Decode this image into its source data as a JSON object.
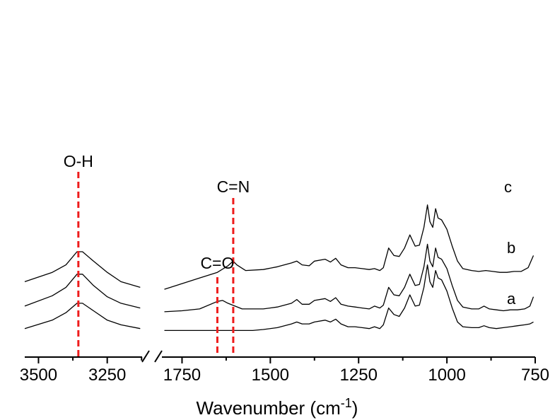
{
  "chart_data": {
    "type": "line",
    "xlabel_main": "Wavenumber (cm",
    "xlabel_sup": "-1",
    "xlabel_end": ")",
    "axis_break": true,
    "x_segments": [
      {
        "xlim": [
          3550,
          3100
        ],
        "ticks": [
          3500,
          3250
        ],
        "tick_labels": [
          "3500",
          "3250"
        ]
      },
      {
        "xlim": [
          1825,
          750
        ],
        "ticks": [
          1750,
          1500,
          1250,
          1000,
          750
        ],
        "tick_labels": [
          "1750",
          "1500",
          "1250",
          "1000",
          "750"
        ]
      }
    ],
    "series": [
      {
        "name": "c",
        "left": [
          [
            3550,
            0.77
          ],
          [
            3450,
            0.82
          ],
          [
            3400,
            0.86
          ],
          [
            3360,
            0.93
          ],
          [
            3340,
            0.93
          ],
          [
            3300,
            0.88
          ],
          [
            3250,
            0.82
          ],
          [
            3200,
            0.77
          ],
          [
            3130,
            0.74
          ]
        ],
        "right": [
          [
            1800,
            0.73
          ],
          [
            1750,
            0.76
          ],
          [
            1700,
            0.79
          ],
          [
            1650,
            0.82
          ],
          [
            1620,
            0.855
          ],
          [
            1605,
            0.88
          ],
          [
            1595,
            0.86
          ],
          [
            1570,
            0.83
          ],
          [
            1520,
            0.835
          ],
          [
            1480,
            0.85
          ],
          [
            1440,
            0.87
          ],
          [
            1425,
            0.88
          ],
          [
            1410,
            0.86
          ],
          [
            1390,
            0.855
          ],
          [
            1375,
            0.88
          ],
          [
            1345,
            0.89
          ],
          [
            1330,
            0.875
          ],
          [
            1315,
            0.895
          ],
          [
            1300,
            0.86
          ],
          [
            1280,
            0.845
          ],
          [
            1260,
            0.845
          ],
          [
            1240,
            0.84
          ],
          [
            1220,
            0.835
          ],
          [
            1205,
            0.84
          ],
          [
            1190,
            0.83
          ],
          [
            1180,
            0.845
          ],
          [
            1165,
            0.95
          ],
          [
            1150,
            0.91
          ],
          [
            1135,
            0.905
          ],
          [
            1120,
            0.95
          ],
          [
            1105,
            1.02
          ],
          [
            1090,
            0.96
          ],
          [
            1078,
            0.965
          ],
          [
            1065,
            1.06
          ],
          [
            1055,
            1.18
          ],
          [
            1048,
            1.09
          ],
          [
            1040,
            1.06
          ],
          [
            1032,
            1.16
          ],
          [
            1025,
            1.11
          ],
          [
            1015,
            1.1
          ],
          [
            1000,
            1.05
          ],
          [
            985,
            0.96
          ],
          [
            970,
            0.88
          ],
          [
            955,
            0.84
          ],
          [
            930,
            0.83
          ],
          [
            910,
            0.825
          ],
          [
            890,
            0.83
          ],
          [
            870,
            0.825
          ],
          [
            850,
            0.82
          ],
          [
            830,
            0.82
          ],
          [
            810,
            0.825
          ],
          [
            790,
            0.825
          ],
          [
            770,
            0.845
          ],
          [
            755,
            0.91
          ]
        ]
      },
      {
        "name": "b",
        "left": [
          [
            3550,
            0.64
          ],
          [
            3450,
            0.695
          ],
          [
            3400,
            0.74
          ],
          [
            3360,
            0.81
          ],
          [
            3340,
            0.81
          ],
          [
            3300,
            0.75
          ],
          [
            3250,
            0.69
          ],
          [
            3200,
            0.655
          ],
          [
            3130,
            0.63
          ]
        ],
        "right": [
          [
            1800,
            0.61
          ],
          [
            1750,
            0.615
          ],
          [
            1700,
            0.625
          ],
          [
            1650,
            0.665
          ],
          [
            1635,
            0.67
          ],
          [
            1620,
            0.655
          ],
          [
            1580,
            0.625
          ],
          [
            1520,
            0.625
          ],
          [
            1480,
            0.635
          ],
          [
            1440,
            0.655
          ],
          [
            1425,
            0.675
          ],
          [
            1410,
            0.65
          ],
          [
            1390,
            0.65
          ],
          [
            1375,
            0.67
          ],
          [
            1345,
            0.68
          ],
          [
            1330,
            0.665
          ],
          [
            1315,
            0.685
          ],
          [
            1300,
            0.65
          ],
          [
            1280,
            0.64
          ],
          [
            1260,
            0.635
          ],
          [
            1240,
            0.63
          ],
          [
            1220,
            0.625
          ],
          [
            1205,
            0.64
          ],
          [
            1190,
            0.63
          ],
          [
            1180,
            0.645
          ],
          [
            1165,
            0.74
          ],
          [
            1150,
            0.7
          ],
          [
            1135,
            0.695
          ],
          [
            1120,
            0.74
          ],
          [
            1105,
            0.81
          ],
          [
            1090,
            0.75
          ],
          [
            1078,
            0.755
          ],
          [
            1065,
            0.85
          ],
          [
            1055,
            0.97
          ],
          [
            1048,
            0.88
          ],
          [
            1040,
            0.85
          ],
          [
            1032,
            0.95
          ],
          [
            1025,
            0.9
          ],
          [
            1015,
            0.89
          ],
          [
            1000,
            0.84
          ],
          [
            985,
            0.75
          ],
          [
            970,
            0.67
          ],
          [
            955,
            0.635
          ],
          [
            930,
            0.625
          ],
          [
            910,
            0.625
          ],
          [
            895,
            0.64
          ],
          [
            880,
            0.625
          ],
          [
            860,
            0.62
          ],
          [
            840,
            0.615
          ],
          [
            820,
            0.62
          ],
          [
            800,
            0.62
          ],
          [
            780,
            0.625
          ],
          [
            765,
            0.64
          ],
          [
            755,
            0.69
          ]
        ]
      },
      {
        "name": "a",
        "left": [
          [
            3550,
            0.52
          ],
          [
            3450,
            0.565
          ],
          [
            3400,
            0.605
          ],
          [
            3360,
            0.655
          ],
          [
            3340,
            0.655
          ],
          [
            3300,
            0.615
          ],
          [
            3250,
            0.565
          ],
          [
            3200,
            0.54
          ],
          [
            3130,
            0.52
          ]
        ],
        "right": [
          [
            1800,
            0.51
          ],
          [
            1700,
            0.51
          ],
          [
            1600,
            0.51
          ],
          [
            1550,
            0.51
          ],
          [
            1520,
            0.515
          ],
          [
            1480,
            0.525
          ],
          [
            1440,
            0.545
          ],
          [
            1425,
            0.555
          ],
          [
            1410,
            0.545
          ],
          [
            1390,
            0.545
          ],
          [
            1375,
            0.555
          ],
          [
            1345,
            0.565
          ],
          [
            1330,
            0.555
          ],
          [
            1315,
            0.57
          ],
          [
            1300,
            0.545
          ],
          [
            1280,
            0.53
          ],
          [
            1260,
            0.53
          ],
          [
            1240,
            0.525
          ],
          [
            1220,
            0.52
          ],
          [
            1205,
            0.53
          ],
          [
            1190,
            0.52
          ],
          [
            1180,
            0.54
          ],
          [
            1165,
            0.63
          ],
          [
            1150,
            0.595
          ],
          [
            1135,
            0.585
          ],
          [
            1120,
            0.63
          ],
          [
            1105,
            0.7
          ],
          [
            1090,
            0.64
          ],
          [
            1078,
            0.645
          ],
          [
            1065,
            0.74
          ],
          [
            1055,
            0.86
          ],
          [
            1048,
            0.77
          ],
          [
            1040,
            0.74
          ],
          [
            1032,
            0.83
          ],
          [
            1025,
            0.79
          ],
          [
            1015,
            0.78
          ],
          [
            1000,
            0.72
          ],
          [
            985,
            0.63
          ],
          [
            970,
            0.555
          ],
          [
            955,
            0.53
          ],
          [
            930,
            0.525
          ],
          [
            910,
            0.525
          ],
          [
            895,
            0.535
          ],
          [
            880,
            0.525
          ],
          [
            860,
            0.52
          ],
          [
            840,
            0.525
          ],
          [
            820,
            0.53
          ],
          [
            800,
            0.535
          ],
          [
            780,
            0.54
          ],
          [
            765,
            0.545
          ],
          [
            755,
            0.555
          ]
        ]
      }
    ],
    "annotations": [
      {
        "text": "O-H",
        "x": 3355,
        "segment": 0
      },
      {
        "text": "C=N",
        "x": 1605,
        "segment": 1
      },
      {
        "text": "C=O",
        "x": 1650,
        "segment": 1
      }
    ],
    "marker_color": "#ee1c1c",
    "line_color": "#000000"
  }
}
